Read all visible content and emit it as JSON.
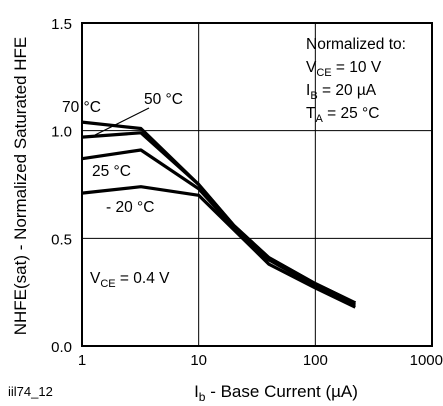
{
  "chart_data": {
    "type": "line",
    "xlabel": "I<sub>b</sub> - Base Current (µA)",
    "xlabel_parts": {
      "main": "I",
      "sub": "b",
      "rest": " - Base Current (µA)"
    },
    "ylabel": "NHFE(sat) - Normalized Saturated HFE",
    "x_scale": "log",
    "xlim": [
      1,
      1000
    ],
    "ylim": [
      0.0,
      1.5
    ],
    "x_ticks": [
      "1",
      "10",
      "100",
      "1000"
    ],
    "y_ticks": [
      "0.0",
      "0.5",
      "1.0",
      "1.5"
    ],
    "grid": true,
    "series": [
      {
        "name": "70 °C",
        "x": [
          1,
          3.2,
          10,
          20,
          40,
          100,
          220
        ],
        "y": [
          1.04,
          1.01,
          0.75,
          0.56,
          0.41,
          0.29,
          0.2
        ]
      },
      {
        "name": "50 °C",
        "x": [
          1,
          3.2,
          10,
          20,
          40,
          100,
          220
        ],
        "y": [
          0.97,
          0.99,
          0.75,
          0.56,
          0.41,
          0.29,
          0.2
        ]
      },
      {
        "name": "25 °C",
        "x": [
          1,
          3.2,
          10,
          20,
          40,
          100,
          220
        ],
        "y": [
          0.87,
          0.91,
          0.73,
          0.55,
          0.4,
          0.28,
          0.19
        ]
      },
      {
        "name": "- 20 °C",
        "x": [
          1,
          3.2,
          10,
          20,
          40,
          100,
          220
        ],
        "y": [
          0.71,
          0.74,
          0.7,
          0.54,
          0.38,
          0.27,
          0.18
        ]
      }
    ],
    "annotations": {
      "normalized_title": "Normalized to:",
      "normalized_vce": {
        "main": "V",
        "sub": "CE",
        "rest": " = 10 V"
      },
      "normalized_ib": {
        "main": "I",
        "sub": "B",
        "rest": " = 20 µA"
      },
      "normalized_ta": {
        "main": "T",
        "sub": "A",
        "rest": " = 25 °C"
      },
      "vce_condition": {
        "main": "V",
        "sub": "CE",
        "rest": " = 0.4 V"
      },
      "figure_code": "iil74_12"
    },
    "colors": {
      "line": "#000000",
      "grid": "#000000",
      "background": "#ffffff"
    }
  }
}
